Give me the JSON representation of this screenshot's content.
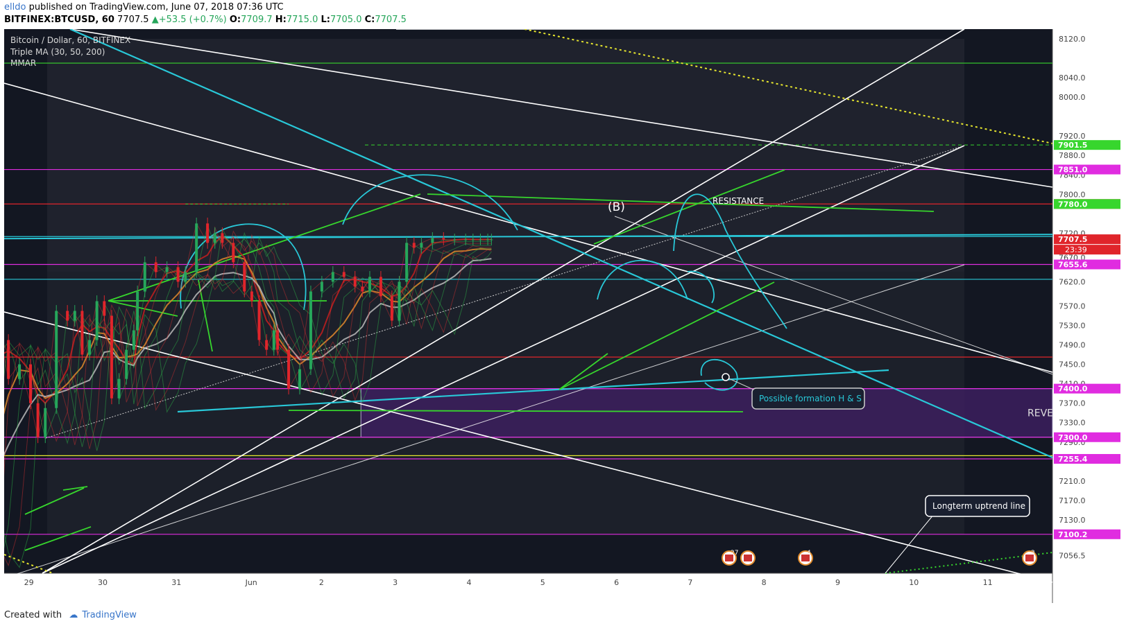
{
  "header": {
    "author": "elldo",
    "published_text": " published on TradingView.com, June 07, 2018 07:36 UTC",
    "symbol": "BITFINEX:BTCUSD, 60",
    "last": "7707.5",
    "change": "+53.5 (+0.7%)",
    "o_label": "O:",
    "o": "7709.7",
    "h_label": "H:",
    "h": "7715.0",
    "l_label": "L:",
    "l": "7705.0",
    "c_label": "C:",
    "c": "7707.5"
  },
  "legend": {
    "title": "Bitcoin / Dollar, 60, BITFINEX",
    "indicator1": "Triple MA (30, 50, 200)",
    "indicator2": "MMAR"
  },
  "annotations": {
    "resistance": "RESISTANCE",
    "b_label": "(B)",
    "hs": "Possible formation H & S",
    "longterm": "Longterm uptrend line",
    "reve": "REVE",
    "countdown": "23:39"
  },
  "event_badges": [
    "27",
    "4",
    "3"
  ],
  "footer": {
    "created": "Created with",
    "brand": "TradingView"
  },
  "colors": {
    "background": "#131722",
    "up": "#26a65b",
    "down": "#e0252b",
    "white_line": "#ffffff",
    "cyan_line": "#29c8d8",
    "green_line": "#37d62d",
    "magenta_line": "#e02ce0",
    "red_line": "#e0252b",
    "yellow_dotted": "#e6e62e"
  },
  "chart_data": {
    "type": "candlestick",
    "title": "Bitcoin / Dollar, 60, BITFINEX",
    "ylim": [
      7020,
      8140
    ],
    "y_ticks": [
      8120,
      8040,
      8000,
      7920,
      7880,
      7840,
      7800,
      7720,
      7670,
      7620,
      7570,
      7530,
      7490,
      7450,
      7410,
      7370,
      7330,
      7290,
      7210,
      7170,
      7130,
      7056.5
    ],
    "x_ticks": [
      "29",
      "30",
      "31",
      "Jun",
      "2",
      "3",
      "4",
      "5",
      "6",
      "7",
      "8",
      "9",
      "10",
      "11"
    ],
    "price_labels": [
      {
        "value": 7901.5,
        "text": "7901.5",
        "color": "#37d62d"
      },
      {
        "value": 7851.0,
        "text": "7851.0",
        "color": "#e02ce0"
      },
      {
        "value": 7780.1,
        "text": "7780.1",
        "color": "#e0252b"
      },
      {
        "value": 7780.0,
        "text": "7780.0",
        "color": "#37d62d"
      },
      {
        "value": 7707.5,
        "text": "7707.5",
        "color": "#e0252b"
      },
      {
        "value": 7655.6,
        "text": "7655.6",
        "color": "#e02ce0"
      },
      {
        "value": 7400.0,
        "text": "7400.0",
        "color": "#e02ce0"
      },
      {
        "value": 7300.0,
        "text": "7300.0",
        "color": "#e02ce0"
      },
      {
        "value": 7255.4,
        "text": "7255.4",
        "color": "#e02ce0"
      },
      {
        "value": 7100.2,
        "text": "7100.2",
        "color": "#e02ce0"
      }
    ],
    "horizontal_levels": [
      {
        "value": 8070,
        "color": "#37d62d"
      },
      {
        "value": 7851,
        "color": "#e02ce0"
      },
      {
        "value": 7780.1,
        "color": "#e0252b"
      },
      {
        "value": 7713,
        "color": "#29c8d8"
      },
      {
        "value": 7655.6,
        "color": "#e02ce0"
      },
      {
        "value": 7625,
        "color": "#29c8d8"
      },
      {
        "value": 7465,
        "color": "#e0252b"
      },
      {
        "value": 7400,
        "color": "#e02ce0"
      },
      {
        "value": 7300,
        "color": "#e02ce0"
      },
      {
        "value": 7262,
        "color": "#e6e62e"
      },
      {
        "value": 7255.4,
        "color": "#e02ce0"
      },
      {
        "value": 7100.2,
        "color": "#e02ce0"
      }
    ],
    "price_series": {
      "name": "BTCUSD",
      "x_day": [
        -1.1,
        -1.0,
        -0.95,
        -0.8,
        -0.7,
        -0.6,
        -0.5,
        -0.4,
        -0.3,
        -0.15,
        0.0,
        0.1,
        0.2,
        0.35,
        0.5,
        0.6,
        0.7,
        0.8,
        0.9,
        1.0,
        1.1,
        1.2,
        1.3,
        1.4,
        1.45,
        1.55,
        1.7,
        1.85,
        2.0,
        2.1,
        2.25,
        2.4,
        2.5,
        2.6,
        2.75,
        2.9,
        3.0,
        3.1,
        3.2,
        3.3,
        3.35,
        3.5,
        3.65,
        3.8,
        3.95,
        4.1,
        4.25,
        4.4,
        4.5,
        4.6,
        4.75,
        4.9,
        5.0,
        5.1,
        5.2,
        5.3,
        5.45,
        5.6,
        5.75,
        5.9,
        6.0,
        6.1,
        6.2,
        6.25
      ],
      "close": [
        7160,
        7090,
        7060,
        7140,
        7390,
        7510,
        7480,
        7500,
        7420,
        7450,
        7370,
        7300,
        7360,
        7560,
        7540,
        7560,
        7470,
        7500,
        7580,
        7550,
        7380,
        7420,
        7480,
        7520,
        7600,
        7660,
        7640,
        7650,
        7620,
        7640,
        7740,
        7700,
        7720,
        7700,
        7660,
        7600,
        7580,
        7500,
        7480,
        7520,
        7480,
        7400,
        7440,
        7600,
        7620,
        7640,
        7630,
        7610,
        7600,
        7630,
        7590,
        7540,
        7620,
        7700,
        7690,
        7700,
        7710,
        7707,
        7707,
        7707,
        7707,
        7707,
        7707,
        7707
      ]
    }
  }
}
